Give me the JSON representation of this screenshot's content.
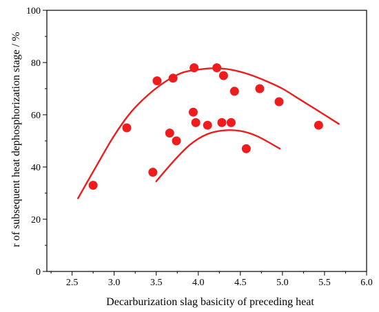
{
  "chart_data": {
    "type": "scatter",
    "title": "",
    "xlabel": "Decarburization slag basicity of  preceding heat",
    "ylabel": "r of subsequent heat dephosphorization stage / %",
    "xlim": [
      2.2,
      6.0
    ],
    "ylim": [
      0,
      100
    ],
    "x_ticks": [
      "2.5",
      "3.0",
      "3.5",
      "4.0",
      "4.5",
      "5.0",
      "5.5",
      "6.0"
    ],
    "y_ticks": [
      "0",
      "20",
      "40",
      "60",
      "80",
      "100"
    ],
    "grid": false,
    "legend": "none",
    "marker_color": "#ee1c1c",
    "curve_color": "#ee1c1c",
    "points": [
      {
        "x": 2.75,
        "y": 33
      },
      {
        "x": 3.15,
        "y": 55
      },
      {
        "x": 3.46,
        "y": 38
      },
      {
        "x": 3.51,
        "y": 73
      },
      {
        "x": 3.66,
        "y": 53
      },
      {
        "x": 3.7,
        "y": 74
      },
      {
        "x": 3.74,
        "y": 50
      },
      {
        "x": 3.94,
        "y": 61
      },
      {
        "x": 3.95,
        "y": 78
      },
      {
        "x": 3.97,
        "y": 57
      },
      {
        "x": 4.11,
        "y": 56
      },
      {
        "x": 4.22,
        "y": 78
      },
      {
        "x": 4.28,
        "y": 57
      },
      {
        "x": 4.3,
        "y": 75
      },
      {
        "x": 4.39,
        "y": 57
      },
      {
        "x": 4.43,
        "y": 69
      },
      {
        "x": 4.57,
        "y": 47
      },
      {
        "x": 4.73,
        "y": 70
      },
      {
        "x": 4.96,
        "y": 65
      },
      {
        "x": 5.43,
        "y": 56
      }
    ],
    "curves": [
      {
        "points": [
          [
            2.57,
            28
          ],
          [
            2.8,
            41
          ],
          [
            3.0,
            52
          ],
          [
            3.2,
            61
          ],
          [
            3.4,
            67.5
          ],
          [
            3.6,
            72.5
          ],
          [
            3.8,
            76
          ],
          [
            4.0,
            77.3
          ],
          [
            4.2,
            77.8
          ],
          [
            4.4,
            77.2
          ],
          [
            4.6,
            75.5
          ],
          [
            4.8,
            73
          ],
          [
            5.0,
            70
          ],
          [
            5.2,
            66
          ],
          [
            5.4,
            62
          ],
          [
            5.67,
            56.5
          ]
        ]
      },
      {
        "points": [
          [
            3.5,
            34.5
          ],
          [
            3.7,
            42
          ],
          [
            3.9,
            48.5
          ],
          [
            4.1,
            52.5
          ],
          [
            4.3,
            54
          ],
          [
            4.5,
            53.8
          ],
          [
            4.7,
            51.8
          ],
          [
            4.97,
            47
          ]
        ]
      }
    ]
  }
}
